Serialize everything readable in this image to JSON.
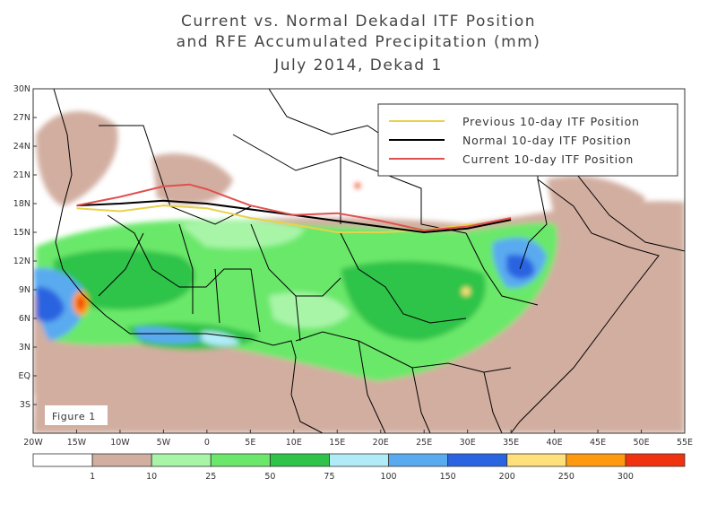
{
  "title": {
    "line1": "Current vs. Normal Dekadal ITF Position",
    "line2": "and RFE Accumulated Precipitation (mm)",
    "line3": "July 2014, Dekad 1"
  },
  "map": {
    "y_ticks": [
      "30N",
      "27N",
      "24N",
      "21N",
      "18N",
      "15N",
      "12N",
      "9N",
      "6N",
      "3N",
      "EQ",
      "3S"
    ],
    "x_ticks": [
      "20W",
      "15W",
      "10W",
      "5W",
      "0",
      "5E",
      "10E",
      "15E",
      "20E",
      "25E",
      "30E",
      "35E",
      "40E",
      "45E",
      "50E",
      "55E"
    ],
    "figure_label": "Figure 1"
  },
  "legend": {
    "items": [
      {
        "label": "Previous 10-day ITF Position",
        "color": "#e8d24a"
      },
      {
        "label": "Normal 10-day ITF Position",
        "color": "#000000"
      },
      {
        "label": "Current 10-day ITF Position",
        "color": "#e05050"
      }
    ]
  },
  "itf_lines": {
    "previous": {
      "color": "#e8d24a",
      "points": [
        [
          -15,
          17.5
        ],
        [
          -10,
          17.2
        ],
        [
          -5,
          17.8
        ],
        [
          0,
          17.5
        ],
        [
          5,
          16.5
        ],
        [
          10,
          15.8
        ],
        [
          15,
          15.0
        ],
        [
          20,
          15.0
        ],
        [
          25,
          15.2
        ],
        [
          30,
          15.8
        ],
        [
          35,
          16.2
        ]
      ]
    },
    "normal": {
      "color": "#000000",
      "points": [
        [
          -15,
          17.8
        ],
        [
          -10,
          18.0
        ],
        [
          -5,
          18.3
        ],
        [
          0,
          18.0
        ],
        [
          5,
          17.4
        ],
        [
          10,
          16.8
        ],
        [
          15,
          16.2
        ],
        [
          20,
          15.6
        ],
        [
          25,
          15.0
        ],
        [
          30,
          15.4
        ],
        [
          35,
          16.3
        ]
      ]
    },
    "current": {
      "color": "#e05050",
      "points": [
        [
          -15,
          17.8
        ],
        [
          -10,
          18.7
        ],
        [
          -5,
          19.8
        ],
        [
          -2,
          20.0
        ],
        [
          0,
          19.5
        ],
        [
          5,
          17.8
        ],
        [
          10,
          16.8
        ],
        [
          15,
          17.0
        ],
        [
          20,
          16.2
        ],
        [
          25,
          15.2
        ],
        [
          30,
          15.6
        ],
        [
          35,
          16.5
        ]
      ]
    }
  },
  "colorbar": {
    "colors": [
      "#ffffff",
      "#d2aea0",
      "#a8f5a8",
      "#6be86b",
      "#2fc34a",
      "#b0ecf8",
      "#5aaaf0",
      "#2a64e0",
      "#ffe07a",
      "#ff9a10",
      "#f03210"
    ],
    "tick_labels": [
      "1",
      "10",
      "25",
      "50",
      "75",
      "100",
      "150",
      "200",
      "250",
      "300"
    ]
  }
}
